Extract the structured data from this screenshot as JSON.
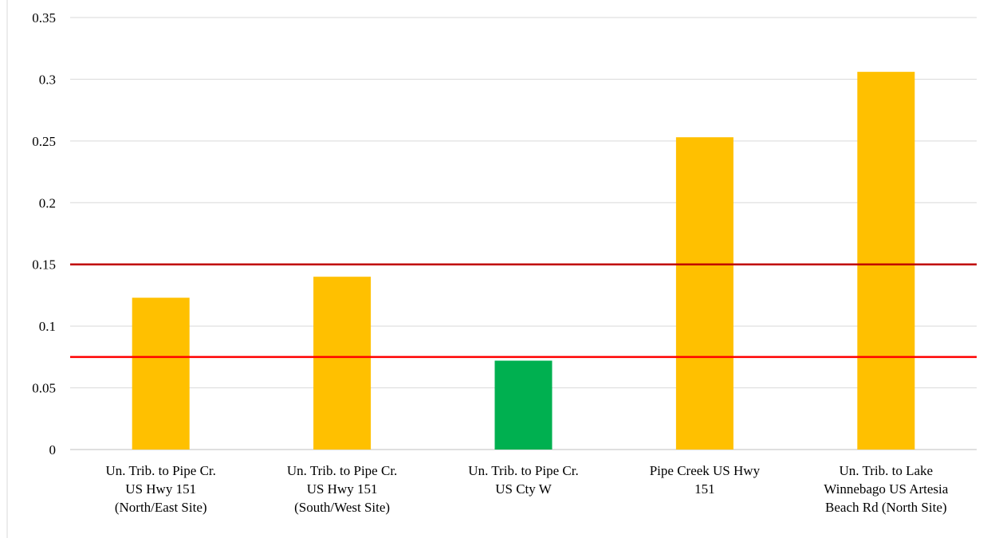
{
  "chart_data": {
    "type": "bar",
    "title": "",
    "xlabel": "",
    "ylabel": "",
    "ylim": [
      0,
      0.35
    ],
    "yticks": [
      0,
      0.05,
      0.1,
      0.15,
      0.2,
      0.25,
      0.3,
      0.35
    ],
    "ytick_labels": [
      "0",
      "0.05",
      "0.1",
      "0.15",
      "0.2",
      "0.25",
      "0.3",
      "0.35"
    ],
    "grid": true,
    "legend": "none",
    "categories": [
      [
        "Un. Trib. to Pipe Cr.",
        "US Hwy 151",
        "(North/East Site)"
      ],
      [
        "Un. Trib. to Pipe Cr.",
        "US Hwy 151",
        "(South/West Site)"
      ],
      [
        "Un. Trib. to Pipe Cr.",
        "US Cty W"
      ],
      [
        "Pipe Creek US Hwy",
        "151"
      ],
      [
        "Un. Trib. to Lake",
        "Winnebago US Artesia",
        "Beach Rd (North Site)"
      ]
    ],
    "values": [
      0.123,
      0.14,
      0.072,
      0.253,
      0.306
    ],
    "bar_colors": [
      "#FFC000",
      "#FFC000",
      "#00B050",
      "#FFC000",
      "#FFC000"
    ],
    "reference_lines": [
      {
        "value": 0.15,
        "color": "#C00000"
      },
      {
        "value": 0.075,
        "color": "#FF0000"
      }
    ],
    "grid_color": "#D9D9D9"
  }
}
